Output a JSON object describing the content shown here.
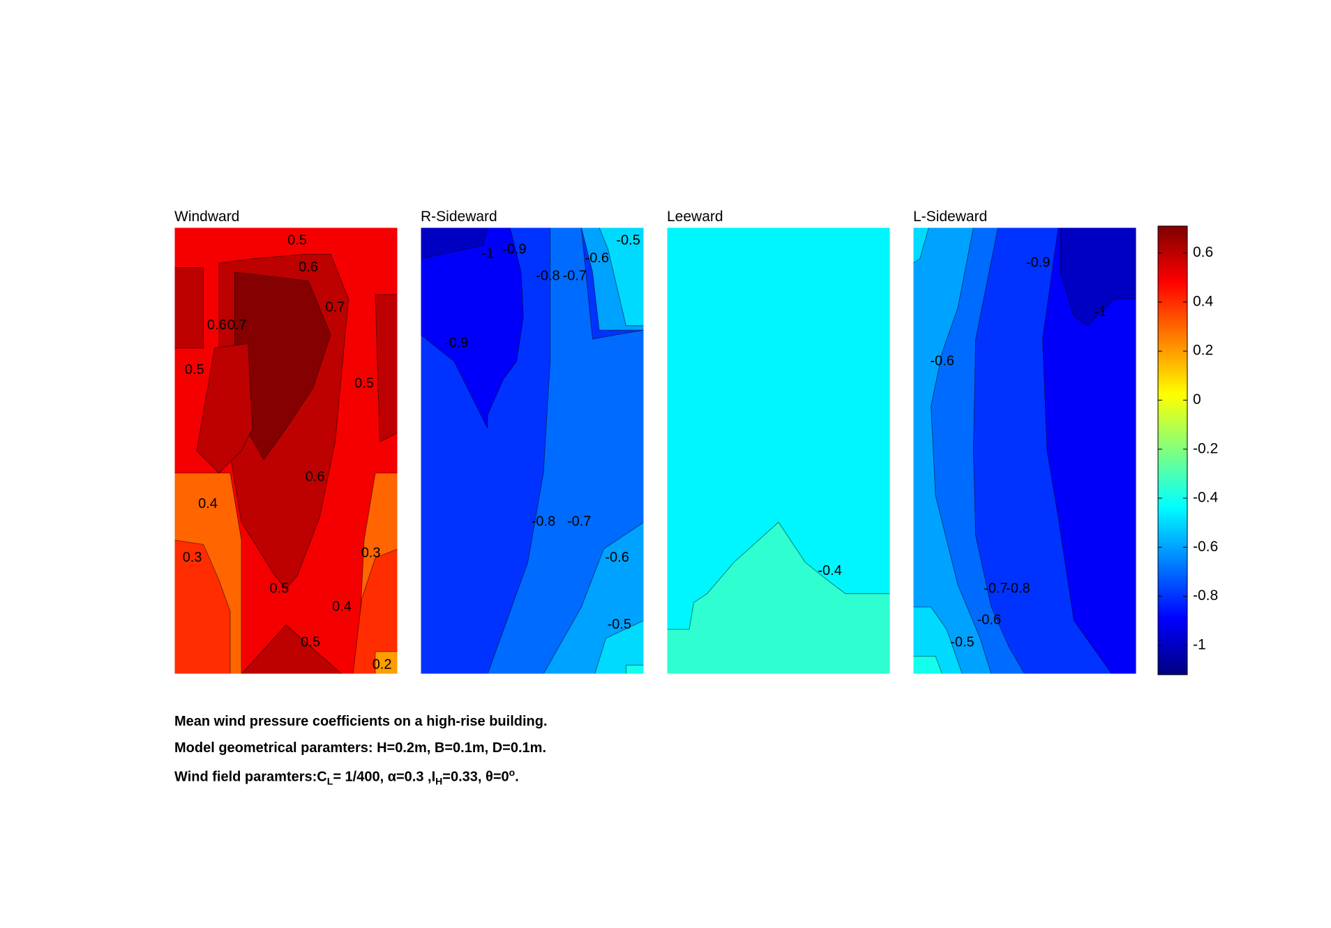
{
  "chart_data": {
    "type": "contour",
    "colormap": "jet",
    "clim": [
      -1.12,
      0.71
    ],
    "colorbar": {
      "ticks": [
        0.6,
        0.4,
        0.2,
        0,
        -0.2,
        -0.4,
        -0.6,
        -0.8,
        -1
      ],
      "tick_labels": [
        "0.6",
        "0.4",
        "0.2",
        "0",
        "-0.2",
        "-0.4",
        "-0.6",
        "-0.8",
        "-1"
      ],
      "placement": "right"
    },
    "panels": [
      {
        "title": "Windward",
        "background_level": 0.5,
        "regions": [
          {
            "level": 0.3,
            "points": [
              [
                0,
                0.55
              ],
              [
                0.25,
                0.55
              ],
              [
                0.3,
                0.7
              ],
              [
                0.3,
                1
              ],
              [
                0,
                1
              ]
            ]
          },
          {
            "level": 0.3,
            "points": [
              [
                1,
                0.55
              ],
              [
                0.9,
                0.55
              ],
              [
                0.85,
                0.7
              ],
              [
                0.82,
                1
              ],
              [
                1,
                1
              ]
            ]
          },
          {
            "level": 0.4,
            "points": [
              [
                0,
                0.7
              ],
              [
                0.13,
                0.71
              ],
              [
                0.2,
                0.79
              ],
              [
                0.25,
                0.86
              ],
              [
                0.25,
                1
              ],
              [
                0,
                1
              ]
            ]
          },
          {
            "level": 0.4,
            "points": [
              [
                1,
                0.72
              ],
              [
                0.9,
                0.74
              ],
              [
                0.84,
                0.83
              ],
              [
                0.8,
                1
              ],
              [
                1,
                1
              ]
            ]
          },
          {
            "level": 0.2,
            "points": [
              [
                0.9,
                0.95
              ],
              [
                1,
                0.95
              ],
              [
                1,
                1
              ],
              [
                0.9,
                1
              ]
            ]
          },
          {
            "level": 0.6,
            "points": [
              [
                0,
                0.09
              ],
              [
                0.13,
                0.09
              ],
              [
                0.13,
                0.27
              ],
              [
                0,
                0.27
              ]
            ]
          },
          {
            "level": 0.6,
            "points": [
              [
                1,
                0.15
              ],
              [
                0.9,
                0.15
              ],
              [
                0.92,
                0.48
              ],
              [
                1,
                0.46
              ]
            ]
          },
          {
            "level": 0.6,
            "points": [
              [
                0.2,
                0.08
              ],
              [
                0.35,
                0.07
              ],
              [
                0.58,
                0.06
              ],
              [
                0.7,
                0.06
              ],
              [
                0.78,
                0.16
              ],
              [
                0.72,
                0.48
              ],
              [
                0.65,
                0.65
              ],
              [
                0.55,
                0.78
              ],
              [
                0.5,
                0.81
              ],
              [
                0.45,
                0.78
              ],
              [
                0.3,
                0.66
              ],
              [
                0.2,
                0.36
              ]
            ]
          },
          {
            "level": 0.7,
            "points": [
              [
                0.27,
                0.1
              ],
              [
                0.6,
                0.12
              ],
              [
                0.7,
                0.24
              ],
              [
                0.62,
                0.36
              ],
              [
                0.5,
                0.45
              ],
              [
                0.4,
                0.52
              ],
              [
                0.3,
                0.43
              ],
              [
                0.27,
                0.3
              ]
            ]
          },
          {
            "level": 0.6,
            "points": [
              [
                0.18,
                0.27
              ],
              [
                0.33,
                0.26
              ],
              [
                0.35,
                0.45
              ],
              [
                0.3,
                0.5
              ],
              [
                0.2,
                0.55
              ],
              [
                0.1,
                0.5
              ]
            ]
          },
          {
            "level": 0.6,
            "points": [
              [
                0.3,
                1
              ],
              [
                0.5,
                0.89
              ],
              [
                0.75,
                1
              ]
            ]
          }
        ],
        "labels": [
          {
            "text": "0.5",
            "x": 0.55,
            "y": 0.03
          },
          {
            "text": "0.6",
            "x": 0.6,
            "y": 0.09
          },
          {
            "text": "0.7",
            "x": 0.72,
            "y": 0.18
          },
          {
            "text": "0.6",
            "x": 0.19,
            "y": 0.22
          },
          {
            "text": "0.7",
            "x": 0.28,
            "y": 0.22
          },
          {
            "text": "0.5",
            "x": 0.09,
            "y": 0.32
          },
          {
            "text": "0.5",
            "x": 0.85,
            "y": 0.35
          },
          {
            "text": "0.6",
            "x": 0.63,
            "y": 0.56
          },
          {
            "text": "0.4",
            "x": 0.15,
            "y": 0.62
          },
          {
            "text": "0.3",
            "x": 0.08,
            "y": 0.74
          },
          {
            "text": "0.3",
            "x": 0.88,
            "y": 0.73
          },
          {
            "text": "0.5",
            "x": 0.47,
            "y": 0.81
          },
          {
            "text": "0.4",
            "x": 0.75,
            "y": 0.85
          },
          {
            "text": "0.5",
            "x": 0.61,
            "y": 0.93
          },
          {
            "text": "0.2",
            "x": 0.93,
            "y": 0.98
          }
        ]
      },
      {
        "title": "R-Sideward",
        "background_level": -0.8,
        "regions": [
          {
            "level": -0.7,
            "points": [
              [
                0.58,
                0
              ],
              [
                0.72,
                0
              ],
              [
                0.77,
                0.25
              ],
              [
                0.88,
                0.24
              ],
              [
                1,
                0.23
              ],
              [
                1,
                0.66
              ],
              [
                0.9,
                0.75
              ],
              [
                0.85,
                0.88
              ],
              [
                0.7,
                1
              ],
              [
                0.3,
                1
              ],
              [
                0.48,
                0.75
              ],
              [
                0.55,
                0.55
              ],
              [
                0.58,
                0.3
              ]
            ]
          },
          {
            "level": -0.6,
            "points": [
              [
                0.72,
                0
              ],
              [
                1,
                0
              ],
              [
                1,
                0.23
              ],
              [
                0.8,
                0.23
              ],
              [
                0.77,
                0.1
              ]
            ]
          },
          {
            "level": -0.6,
            "points": [
              [
                1,
                0.66
              ],
              [
                1,
                1
              ],
              [
                0.55,
                1
              ],
              [
                0.72,
                0.85
              ],
              [
                0.82,
                0.72
              ]
            ]
          },
          {
            "level": -0.5,
            "points": [
              [
                0.8,
                0
              ],
              [
                1,
                0
              ],
              [
                1,
                0.22
              ],
              [
                0.92,
                0.22
              ],
              [
                0.84,
                0.05
              ]
            ]
          },
          {
            "level": -0.5,
            "points": [
              [
                1,
                0.88
              ],
              [
                1,
                1
              ],
              [
                0.78,
                1
              ],
              [
                0.83,
                0.92
              ]
            ]
          },
          {
            "level": -0.4,
            "points": [
              [
                0.92,
                0.98
              ],
              [
                1,
                0.98
              ],
              [
                1,
                1
              ],
              [
                0.92,
                1
              ]
            ]
          },
          {
            "level": -0.9,
            "points": [
              [
                0,
                0
              ],
              [
                0.4,
                0
              ],
              [
                0.45,
                0.1
              ],
              [
                0.46,
                0.2
              ],
              [
                0.43,
                0.3
              ],
              [
                0.37,
                0.34
              ],
              [
                0.3,
                0.42
              ],
              [
                0.3,
                0.45
              ],
              [
                0.15,
                0.3
              ],
              [
                0,
                0.24
              ]
            ]
          },
          {
            "level": -1,
            "points": [
              [
                0,
                0
              ],
              [
                0.3,
                0
              ],
              [
                0.28,
                0.04
              ],
              [
                0,
                0.07
              ]
            ]
          }
        ],
        "labels": [
          {
            "text": "-0.5",
            "x": 0.93,
            "y": 0.03
          },
          {
            "text": "-1",
            "x": 0.3,
            "y": 0.06
          },
          {
            "text": "-0.9",
            "x": 0.42,
            "y": 0.05
          },
          {
            "text": "-0.6",
            "x": 0.79,
            "y": 0.07
          },
          {
            "text": "-0.8",
            "x": 0.57,
            "y": 0.11
          },
          {
            "text": "-0.7",
            "x": 0.69,
            "y": 0.11
          },
          {
            "text": "-0.9",
            "x": 0.16,
            "y": 0.26
          },
          {
            "text": "-0.8",
            "x": 0.55,
            "y": 0.66
          },
          {
            "text": "-0.7",
            "x": 0.71,
            "y": 0.66
          },
          {
            "text": "-0.6",
            "x": 0.88,
            "y": 0.74
          },
          {
            "text": "-0.5",
            "x": 0.89,
            "y": 0.89
          }
        ]
      },
      {
        "title": "Leeward",
        "background_level": -0.45,
        "regions": [
          {
            "level": -0.35,
            "points": [
              [
                0,
                0.9
              ],
              [
                0.1,
                0.9
              ],
              [
                0.12,
                0.84
              ],
              [
                0.18,
                0.82
              ],
              [
                0.3,
                0.75
              ],
              [
                0.5,
                0.66
              ],
              [
                0.62,
                0.75
              ],
              [
                0.72,
                0.79
              ],
              [
                0.8,
                0.82
              ],
              [
                0.9,
                0.82
              ],
              [
                1,
                0.82
              ],
              [
                1,
                1
              ],
              [
                0,
                1
              ]
            ]
          }
        ],
        "labels": [
          {
            "text": "-0.4",
            "x": 0.73,
            "y": 0.77
          }
        ]
      },
      {
        "title": "L-Sideward",
        "background_level": -0.8,
        "regions": [
          {
            "level": -0.7,
            "points": [
              [
                0,
                0
              ],
              [
                0.38,
                0
              ],
              [
                0.28,
                0.25
              ],
              [
                0.27,
                0.5
              ],
              [
                0.28,
                0.69
              ],
              [
                0.35,
                0.85
              ],
              [
                0.43,
                0.94
              ],
              [
                0.5,
                1
              ],
              [
                0,
                1
              ]
            ]
          },
          {
            "level": -0.6,
            "points": [
              [
                0,
                0
              ],
              [
                0.27,
                0
              ],
              [
                0.2,
                0.18
              ],
              [
                0.13,
                0.28
              ],
              [
                0.08,
                0.4
              ],
              [
                0.1,
                0.6
              ],
              [
                0.2,
                0.8
              ],
              [
                0.3,
                0.92
              ],
              [
                0.35,
                1
              ],
              [
                0,
                1
              ]
            ]
          },
          {
            "level": -0.5,
            "points": [
              [
                0,
                0
              ],
              [
                0.07,
                0
              ],
              [
                0.03,
                0.07
              ],
              [
                0,
                0.08
              ]
            ]
          },
          {
            "level": -0.5,
            "points": [
              [
                0,
                0.85
              ],
              [
                0.08,
                0.85
              ],
              [
                0.15,
                0.9
              ],
              [
                0.22,
                1
              ],
              [
                0,
                1
              ]
            ]
          },
          {
            "level": -0.4,
            "points": [
              [
                0,
                0.96
              ],
              [
                0.1,
                0.96
              ],
              [
                0.13,
                1
              ],
              [
                0,
                1
              ]
            ]
          },
          {
            "level": -0.9,
            "points": [
              [
                0.65,
                0
              ],
              [
                1,
                0
              ],
              [
                1,
                1
              ],
              [
                0.89,
                1
              ],
              [
                0.72,
                0.88
              ],
              [
                0.65,
                0.65
              ],
              [
                0.6,
                0.5
              ],
              [
                0.58,
                0.25
              ]
            ]
          },
          {
            "level": -1,
            "points": [
              [
                0.66,
                0
              ],
              [
                1,
                0
              ],
              [
                1,
                0.16
              ],
              [
                0.9,
                0.16
              ],
              [
                0.78,
                0.22
              ],
              [
                0.72,
                0.2
              ],
              [
                0.66,
                0.1
              ]
            ]
          }
        ],
        "labels": [
          {
            "text": "-0.9",
            "x": 0.56,
            "y": 0.08
          },
          {
            "text": "-1",
            "x": 0.84,
            "y": 0.19
          },
          {
            "text": "-0.6",
            "x": 0.13,
            "y": 0.3
          },
          {
            "text": "-0.7",
            "x": 0.37,
            "y": 0.81
          },
          {
            "text": "-0.8",
            "x": 0.47,
            "y": 0.81
          },
          {
            "text": "-0.6",
            "x": 0.34,
            "y": 0.88
          },
          {
            "text": "-0.5",
            "x": 0.22,
            "y": 0.93
          }
        ]
      }
    ]
  },
  "caption": {
    "line1": "Mean wind pressure coefficients on a high-rise building.",
    "line2": "Model geometrical paramters: H=0.2m, B=0.1m, D=0.1m.",
    "line3": {
      "prefix": "Wind field paramters:C",
      "sub1": "L",
      "mid1": "= 1/400, α=0.3 ,I",
      "sub2": "H",
      "mid2": "=0.33, θ=0",
      "sup": "o",
      "suffix": "."
    }
  }
}
